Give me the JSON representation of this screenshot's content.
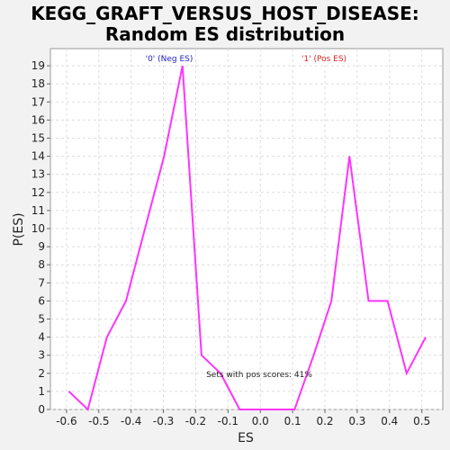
{
  "chart_data": {
    "type": "line",
    "title_line1": "KEGG_GRAFT_VERSUS_HOST_DISEASE:",
    "title_line2": "Random ES distribution",
    "xlabel": "ES",
    "ylabel": "P(ES)",
    "xlim": [
      -0.65,
      0.565
    ],
    "ylim": [
      0,
      19.95
    ],
    "x_ticks": [
      "-0.6",
      "-0.5",
      "-0.4",
      "-0.3",
      "-0.2",
      "-0.1",
      "0.0",
      "0.1",
      "0.2",
      "0.3",
      "0.4",
      "0.5"
    ],
    "x_tick_values": [
      -0.6,
      -0.5,
      -0.4,
      -0.3,
      -0.2,
      -0.1,
      0.0,
      0.1,
      0.2,
      0.3,
      0.4,
      0.5
    ],
    "y_ticks": [
      0,
      1,
      2,
      3,
      4,
      5,
      6,
      7,
      8,
      9,
      10,
      11,
      12,
      13,
      14,
      15,
      16,
      17,
      18,
      19
    ],
    "grid": true,
    "series": [
      {
        "color": "#ff33ff",
        "x": [
          -0.593,
          -0.534,
          -0.475,
          -0.416,
          -0.357,
          -0.298,
          -0.241,
          -0.182,
          -0.123,
          -0.064,
          -0.005,
          0.054,
          0.106,
          0.165,
          0.22,
          0.276,
          0.335,
          0.394,
          0.453,
          0.512
        ],
        "y": [
          1,
          0,
          4,
          6,
          10,
          14,
          19,
          3,
          2,
          0,
          0,
          0,
          0,
          3,
          6,
          14,
          6,
          6,
          2,
          4
        ]
      }
    ],
    "annotations": {
      "neg_label": "'0' (Neg ES)",
      "pos_label": "'1' (Pos ES)",
      "neg_color": "#2222cc",
      "pos_color": "#dd2222",
      "sets_text": "Sets with pos scores: 41%"
    }
  }
}
